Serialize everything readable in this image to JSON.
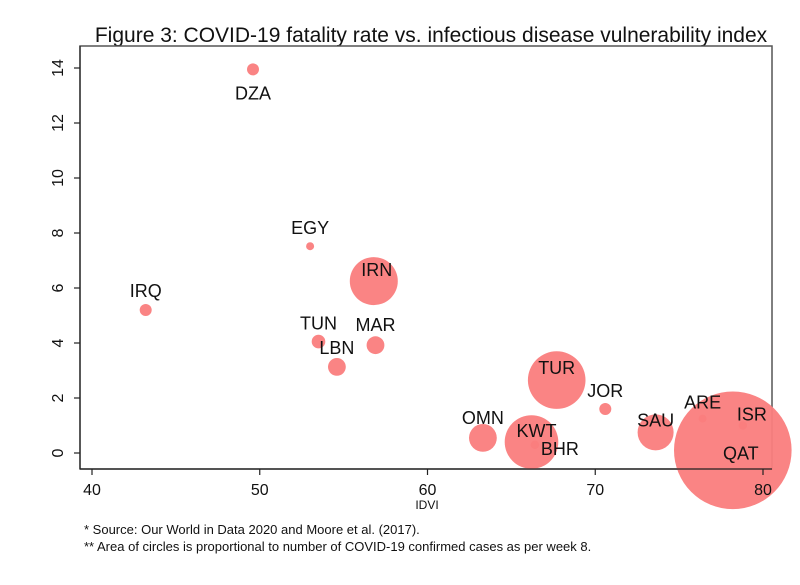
{
  "chart_data": {
    "type": "scatter",
    "title": "Figure 3: COVID-19 fatality rate vs. infectious disease vulnerability index",
    "xlabel": "IDVI",
    "ylabel": "",
    "xlim": [
      39.5,
      80.5
    ],
    "ylim": [
      -0.6,
      14.4
    ],
    "xticks": [
      40,
      50,
      60,
      70,
      80
    ],
    "yticks": [
      0,
      2,
      4,
      6,
      8,
      10,
      12,
      14
    ],
    "grid": false,
    "marker_color": "#fa7d7d",
    "size_encoding": "Area of circles proportional to number of COVID-19 confirmed cases as per week 8",
    "points": [
      {
        "label": "DZA",
        "x": 49.6,
        "y": 13.95,
        "size": 1.0,
        "label_pos": "below"
      },
      {
        "label": "EGY",
        "x": 53.0,
        "y": 7.52,
        "size": 0.45,
        "label_pos": "above"
      },
      {
        "label": "IRQ",
        "x": 43.2,
        "y": 5.2,
        "size": 1.0,
        "label_pos": "above"
      },
      {
        "label": "IRN",
        "x": 56.8,
        "y": 6.25,
        "size": 16.0,
        "label_pos": "center-top"
      },
      {
        "label": "TUN",
        "x": 53.5,
        "y": 4.05,
        "size": 1.3,
        "label_pos": "above"
      },
      {
        "label": "MAR",
        "x": 56.9,
        "y": 3.92,
        "size": 2.2,
        "label_pos": "above"
      },
      {
        "label": "LBN",
        "x": 54.6,
        "y": 3.13,
        "size": 2.2,
        "label_pos": "above"
      },
      {
        "label": "TUR",
        "x": 67.7,
        "y": 2.65,
        "size": 23.0,
        "label_pos": "center-top"
      },
      {
        "label": "JOR",
        "x": 70.6,
        "y": 1.6,
        "size": 1.0,
        "label_pos": "above"
      },
      {
        "label": "OMN",
        "x": 63.3,
        "y": 0.55,
        "size": 5.4,
        "label_pos": "above"
      },
      {
        "label": "KWT",
        "x": 66.2,
        "y": 0.4,
        "size": 20.0,
        "label_pos": "center-top"
      },
      {
        "label": "BHR",
        "x": 66.4,
        "y": 0.3,
        "size": 0.5,
        "label_pos": "below-right"
      },
      {
        "label": "SAU",
        "x": 73.6,
        "y": 0.75,
        "size": 9.0,
        "label_pos": "above"
      },
      {
        "label": "ARE",
        "x": 76.4,
        "y": 1.25,
        "size": 0.45,
        "label_pos": "above"
      },
      {
        "label": "ISR",
        "x": 78.8,
        "y": 1.0,
        "size": 0.5,
        "label_pos": "above-right"
      },
      {
        "label": "QAT",
        "x": 78.2,
        "y": 0.1,
        "size": 96.0,
        "label_pos": "center"
      }
    ]
  },
  "footnotes": [
    "* Source:  Our World in Data 2020 and Moore et al. (2017).",
    "** Area of circles is proportional to number of COVID-19 confirmed cases as per week 8."
  ]
}
